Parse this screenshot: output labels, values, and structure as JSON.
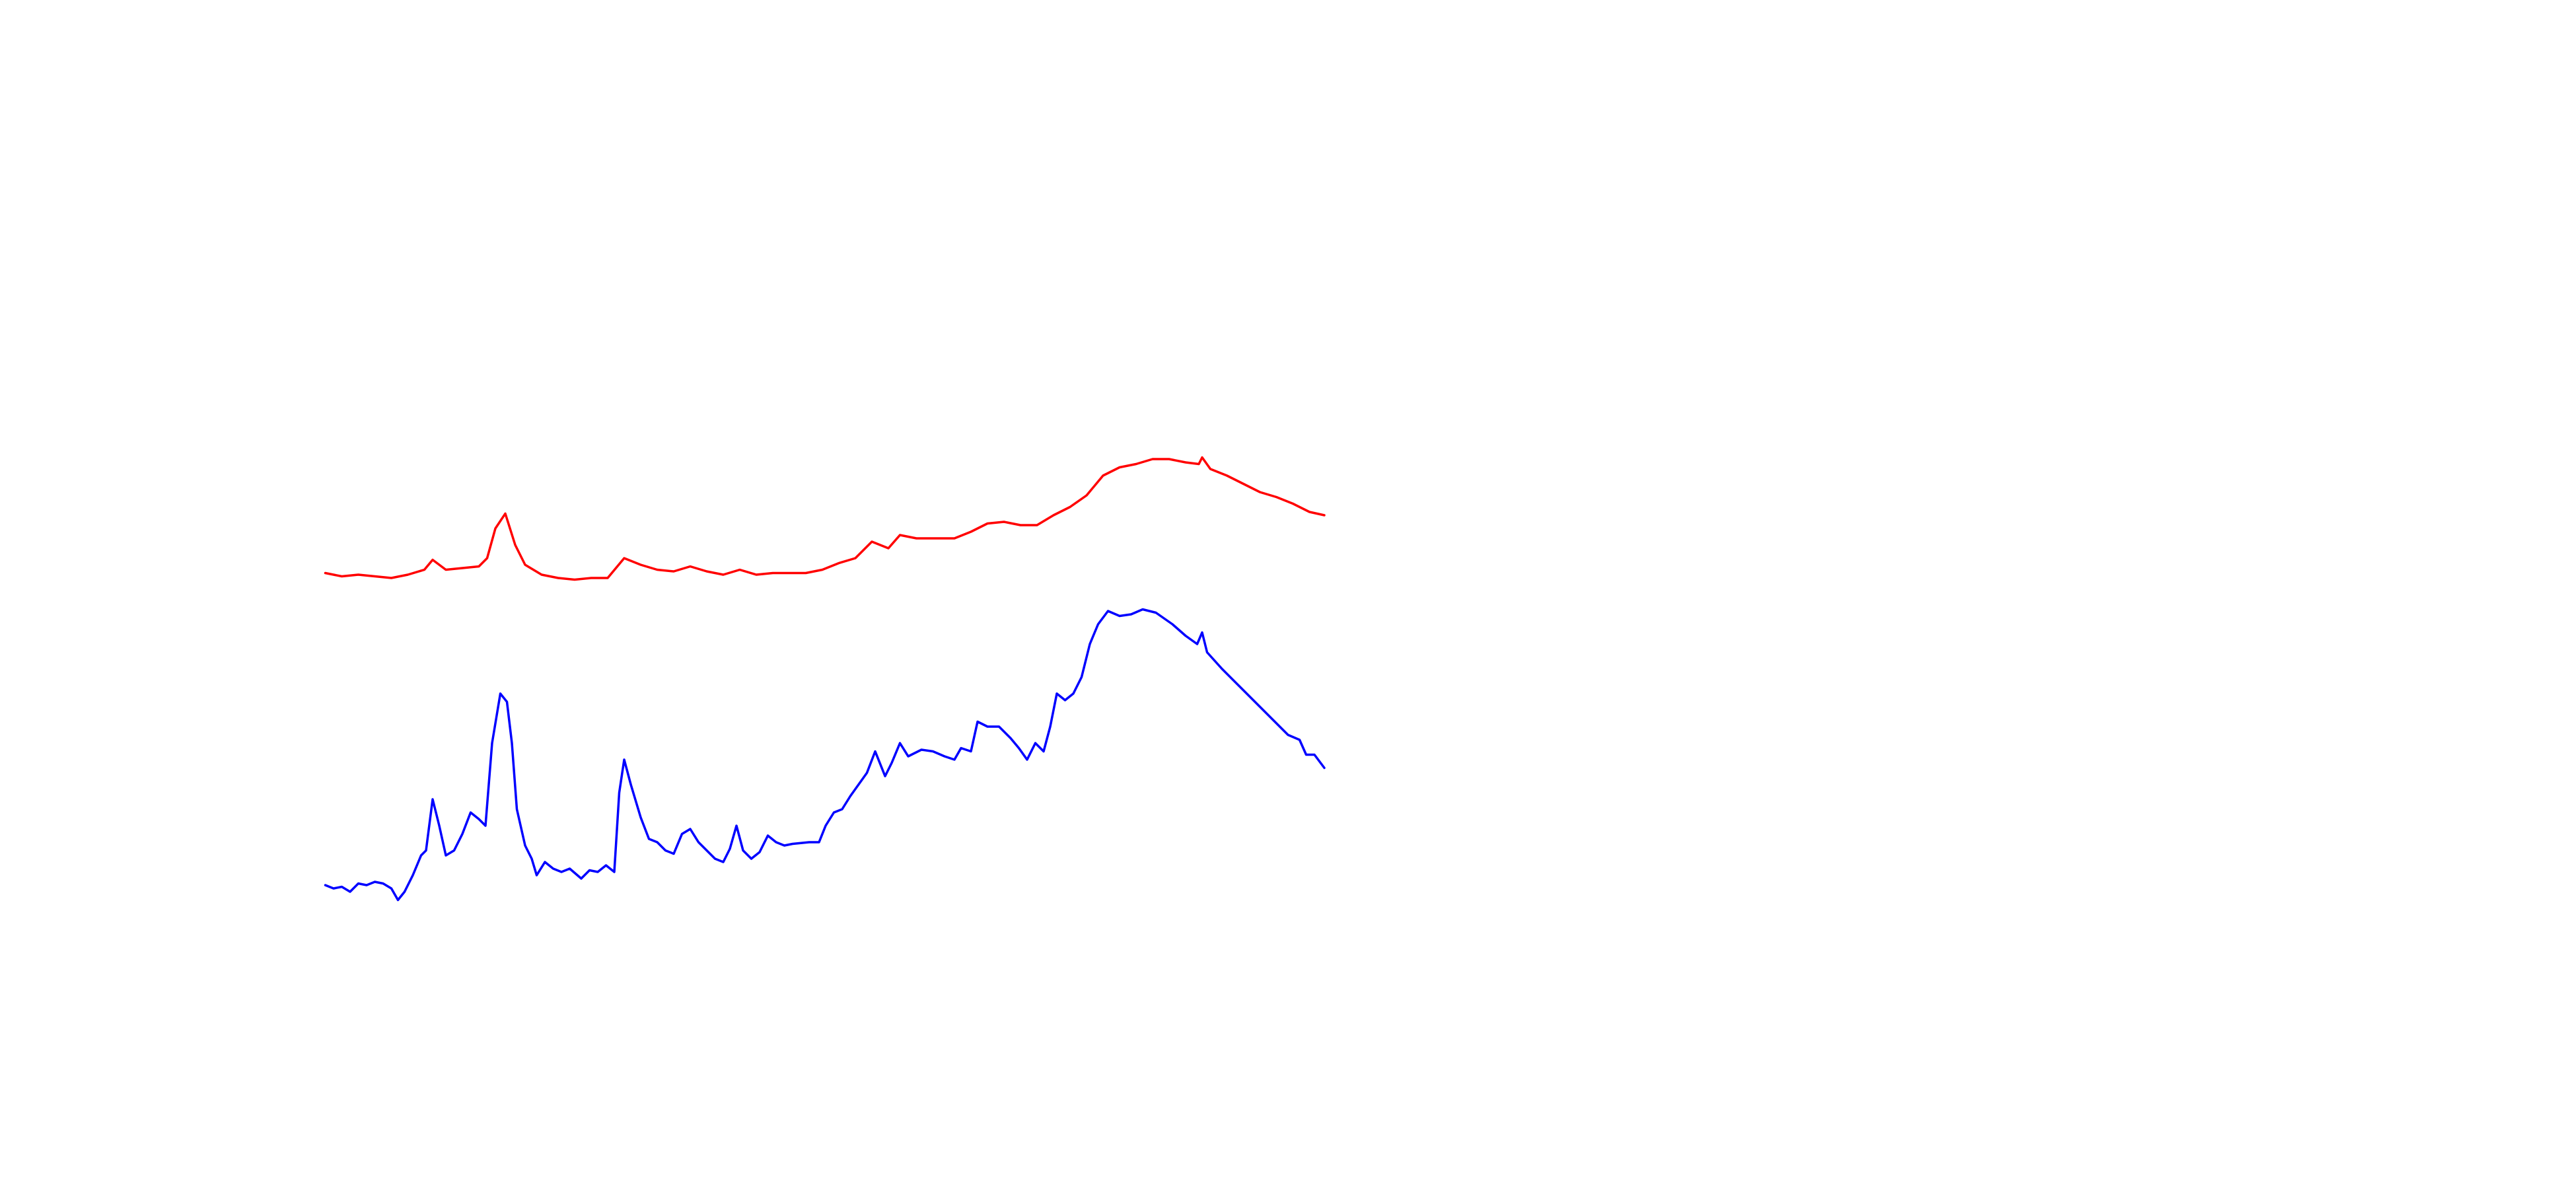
{
  "chart_data": {
    "type": "line",
    "xlim": [
      0,
      1560
    ],
    "ylim": [
      0,
      720
    ],
    "series": [
      {
        "color": "#ff0000",
        "x": [
          197,
          207,
          217,
          227,
          237,
          247,
          257,
          262,
          270,
          280,
          290,
          295,
          300,
          306,
          312,
          318,
          328,
          338,
          348,
          358,
          368,
          378,
          388,
          398,
          408,
          418,
          428,
          438,
          448,
          458,
          468,
          478,
          488,
          498,
          508,
          518,
          528,
          538,
          545,
          555,
          565,
          578,
          588,
          598,
          608,
          618,
          628,
          638,
          648,
          658,
          668,
          678,
          688,
          698,
          708,
          718,
          726,
          728,
          733,
          743,
          753,
          763,
          773,
          783,
          793,
          802
        ],
        "values": [
          373,
          371,
          372,
          371,
          370,
          372,
          375,
          381,
          375,
          376,
          377,
          382,
          400,
          409,
          390,
          378,
          372,
          370,
          369,
          370,
          370,
          382,
          378,
          375,
          374,
          377,
          374,
          372,
          375,
          372,
          373,
          373,
          373,
          375,
          379,
          382,
          392,
          388,
          396,
          394,
          394,
          394,
          398,
          403,
          404,
          402,
          402,
          408,
          413,
          420,
          432,
          437,
          439,
          442,
          442,
          440,
          439,
          443,
          436,
          432,
          427,
          422,
          419,
          415,
          410,
          408
        ]
      },
      {
        "color": "#0000ff",
        "x": [
          197,
          202,
          207,
          212,
          217,
          222,
          227,
          232,
          237,
          241,
          245,
          250,
          255,
          258,
          262,
          266,
          270,
          275,
          280,
          285,
          290,
          294,
          298,
          303,
          307,
          310,
          313,
          318,
          322,
          325,
          330,
          335,
          340,
          345,
          352,
          357,
          362,
          367,
          372,
          375,
          378,
          382,
          388,
          393,
          398,
          403,
          408,
          413,
          418,
          423,
          428,
          433,
          438,
          442,
          446,
          450,
          455,
          460,
          465,
          470,
          475,
          480,
          490,
          496,
          500,
          505,
          510,
          515,
          520,
          525,
          530,
          536,
          540,
          545,
          550,
          558,
          565,
          572,
          578,
          582,
          588,
          592,
          598,
          605,
          612,
          617,
          622,
          627,
          632,
          636,
          640,
          645,
          650,
          655,
          660,
          665,
          671,
          678,
          685,
          692,
          700,
          710,
          718,
          725,
          728,
          731,
          740,
          750,
          760,
          770,
          780,
          787,
          791,
          796,
          802
        ],
        "values": [
          184,
          182,
          183,
          180,
          185,
          184,
          186,
          185,
          182,
          175,
          180,
          190,
          202,
          205,
          236,
          220,
          202,
          205,
          215,
          228,
          224,
          220,
          270,
          300,
          295,
          270,
          230,
          208,
          200,
          190,
          198,
          194,
          192,
          194,
          188,
          193,
          192,
          196,
          192,
          240,
          260,
          245,
          225,
          212,
          210,
          205,
          203,
          215,
          218,
          210,
          205,
          200,
          198,
          206,
          220,
          205,
          200,
          204,
          214,
          210,
          208,
          209,
          210,
          210,
          220,
          228,
          230,
          238,
          245,
          252,
          265,
          250,
          258,
          270,
          262,
          266,
          265,
          262,
          260,
          267,
          265,
          283,
          280,
          280,
          273,
          267,
          260,
          270,
          265,
          280,
          300,
          296,
          300,
          310,
          330,
          342,
          350,
          347,
          348,
          351,
          349,
          342,
          335,
          330,
          337,
          325,
          315,
          305,
          295,
          285,
          275,
          272,
          263,
          263,
          255
        ]
      }
    ]
  }
}
